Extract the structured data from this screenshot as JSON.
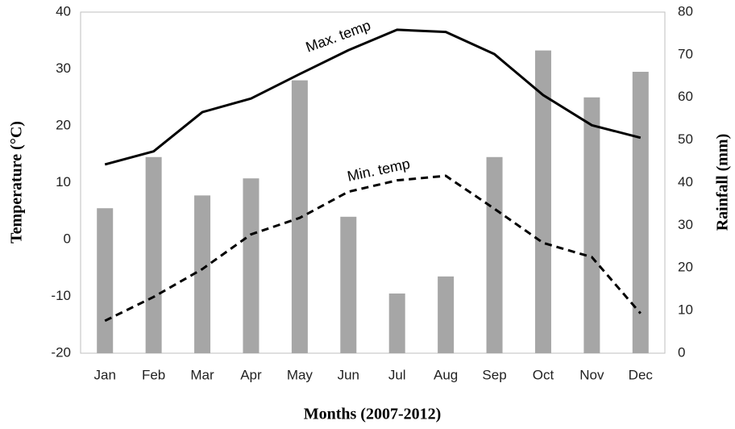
{
  "chart_data": {
    "type": "bar",
    "x_label": "Months (2007-2012)",
    "y_label": "Temperature (°C)",
    "y2_label": "Rainfall (mm)",
    "categories": [
      "Jan",
      "Feb",
      "Mar",
      "Apr",
      "May",
      "Jun",
      "Jul",
      "Aug",
      "Sep",
      "Oct",
      "Nov",
      "Dec"
    ],
    "ylim": [
      -20,
      40
    ],
    "yticks": [
      -20,
      -10,
      0,
      10,
      20,
      30,
      40
    ],
    "y2lim": [
      0,
      80
    ],
    "y2ticks": [
      0,
      10,
      20,
      30,
      40,
      50,
      60,
      70,
      80
    ],
    "grid": false,
    "series": [
      {
        "type": "bar",
        "axis": "y2",
        "color": "#a6a6a6",
        "values": [
          34,
          46,
          37,
          41,
          64,
          32,
          14,
          18,
          46,
          71,
          60,
          66
        ]
      },
      {
        "type": "line",
        "name": "Max. temp",
        "color": "#000000",
        "line_style": "solid",
        "values": [
          13.2,
          15.5,
          22.4,
          24.8,
          29.1,
          33.3,
          36.9,
          36.5,
          32.6,
          25.4,
          20.1,
          17.9
        ]
      },
      {
        "type": "line",
        "name": "Min. temp",
        "color": "#000000",
        "line_style": "dashed",
        "values": [
          -14.3,
          -10.1,
          -5.2,
          0.9,
          3.8,
          8.4,
          10.4,
          11.2,
          5.4,
          -0.6,
          -3.1,
          -13
        ]
      }
    ]
  }
}
